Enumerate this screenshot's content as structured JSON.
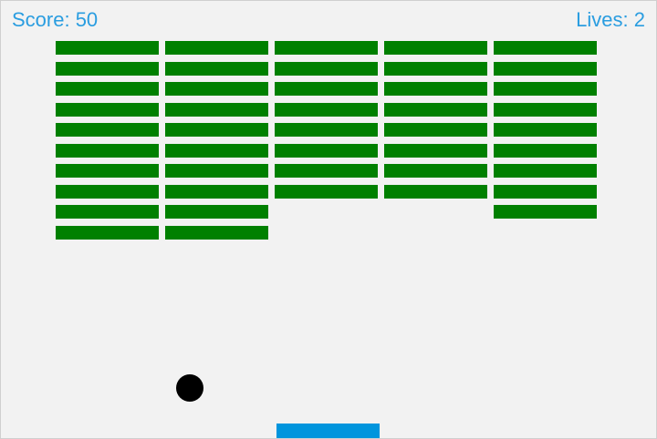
{
  "hud": {
    "score_label": "Score: 50",
    "lives_label": "Lives: 2"
  },
  "colors": {
    "background": "#f2f2f2",
    "hud_text": "#2a9de0",
    "brick": "#008000",
    "ball": "#000000",
    "paddle": "#0095dd"
  },
  "bricks": {
    "columns": 5,
    "rows": 10,
    "present": [
      [
        1,
        1,
        1,
        1,
        1,
        1,
        1,
        1,
        1,
        1
      ],
      [
        1,
        1,
        1,
        1,
        1,
        1,
        1,
        1,
        1,
        1
      ],
      [
        1,
        1,
        1,
        1,
        1,
        1,
        1,
        1,
        0,
        0
      ],
      [
        1,
        1,
        1,
        1,
        1,
        1,
        1,
        1,
        0,
        0
      ],
      [
        1,
        1,
        1,
        1,
        1,
        1,
        1,
        1,
        1,
        0
      ]
    ]
  }
}
